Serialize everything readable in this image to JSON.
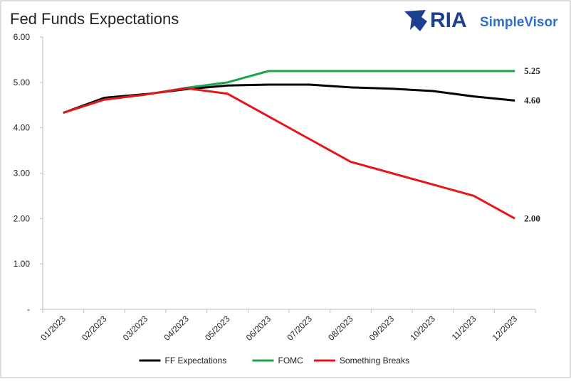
{
  "chart_data": {
    "type": "line",
    "title": "Fed Funds Expectations",
    "categories": [
      "01/2023",
      "02/2023",
      "03/2023",
      "04/2023",
      "05/2023",
      "06/2023",
      "07/2023",
      "08/2023",
      "09/2023",
      "10/2023",
      "11/2023",
      "12/2023"
    ],
    "series": [
      {
        "name": "FF Expectations",
        "color": "#000000",
        "values": [
          4.33,
          4.66,
          4.74,
          4.85,
          4.93,
          4.95,
          4.95,
          4.89,
          4.86,
          4.81,
          4.69,
          4.6
        ],
        "value_labels": [
          null,
          null,
          null,
          null,
          null,
          null,
          null,
          null,
          null,
          null,
          null,
          "4.60"
        ]
      },
      {
        "name": "FOMC",
        "color": "#1ea34a",
        "values": [
          4.33,
          4.62,
          4.73,
          4.88,
          5.0,
          5.25,
          5.25,
          5.25,
          5.25,
          5.25,
          5.25,
          5.25
        ],
        "value_labels": [
          null,
          null,
          null,
          null,
          null,
          null,
          null,
          null,
          null,
          null,
          null,
          "5.25"
        ]
      },
      {
        "name": "Something Breaks",
        "color": "#e8141b",
        "values": [
          4.33,
          4.62,
          4.73,
          4.87,
          4.75,
          4.25,
          3.75,
          3.25,
          3.0,
          2.75,
          2.5,
          2.0
        ],
        "value_labels": [
          null,
          null,
          null,
          null,
          null,
          null,
          null,
          null,
          null,
          null,
          null,
          "2.00"
        ]
      }
    ],
    "ylim": [
      0,
      6
    ],
    "yticks": [
      {
        "value": 0,
        "label": "-"
      },
      {
        "value": 1,
        "label": "1.00"
      },
      {
        "value": 2,
        "label": "2.00"
      },
      {
        "value": 3,
        "label": "3.00"
      },
      {
        "value": 4,
        "label": "4.00"
      },
      {
        "value": 5,
        "label": "5.00"
      },
      {
        "value": 6,
        "label": "6.00"
      }
    ],
    "grid": false,
    "legend": "bottom"
  },
  "logo": {
    "brand": "RIA",
    "product": "SimpleVisor"
  }
}
